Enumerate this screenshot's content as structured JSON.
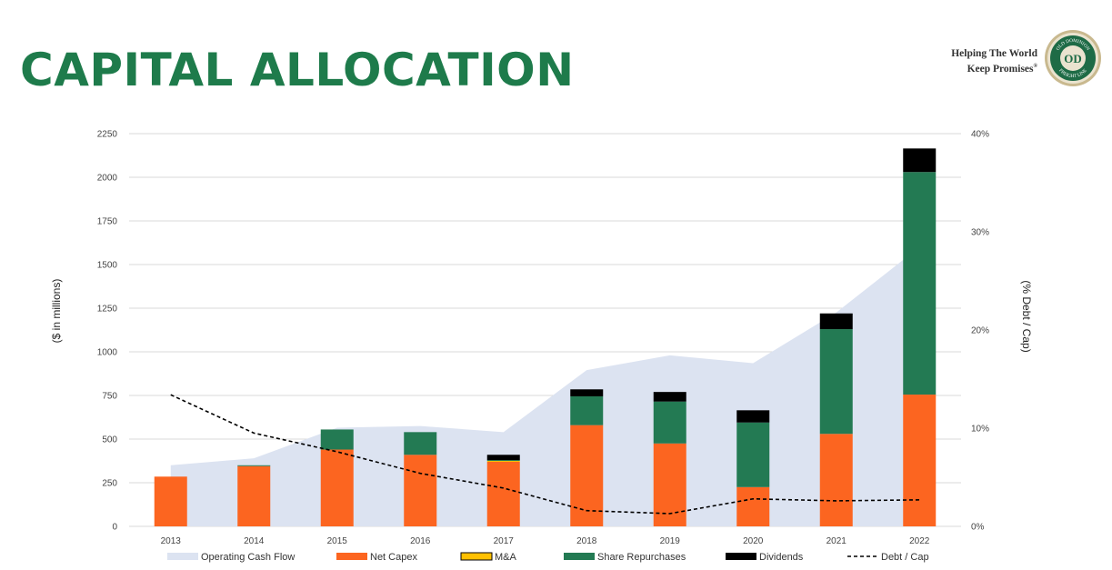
{
  "header": {
    "title": "CAPITAL ALLOCATION",
    "tagline_line1": "Helping The World",
    "tagline_line2": "Keep Promises",
    "trademark": "®",
    "logo_text_top": "OLD DOMINION",
    "logo_text_bottom": "FREIGHT LINE",
    "logo_monogram": "OD"
  },
  "colors": {
    "title": "#1e7b4b",
    "ocf": "#dce3f1",
    "capex": "#fc6520",
    "ma": "#ffc000",
    "repurchases": "#237a53",
    "dividends": "#000000",
    "debt": "#000000",
    "grid": "#d9d9d9"
  },
  "chart_data": {
    "type": "bar",
    "stacked": true,
    "categories": [
      "2013",
      "2014",
      "2015",
      "2016",
      "2017",
      "2018",
      "2019",
      "2020",
      "2021",
      "2022"
    ],
    "ylabel": "($ in millions)",
    "y2label": "(% Debt / Cap)",
    "ylim": [
      0,
      2250
    ],
    "yticks": [
      "0",
      "250",
      "500",
      "750",
      "1000",
      "1250",
      "1500",
      "1750",
      "2000",
      "2250"
    ],
    "y2lim": [
      0,
      0.4
    ],
    "y2ticks": [
      "0%",
      "10%",
      "20%",
      "30%",
      "40%"
    ],
    "grid": true,
    "legend_position": "bottom",
    "series": [
      {
        "name": "Operating Cash Flow",
        "kind": "area",
        "values": [
          350,
          390,
          565,
          575,
          540,
          895,
          980,
          935,
          1225,
          1600
        ]
      },
      {
        "name": "Net Capex",
        "kind": "bar",
        "values": [
          285,
          345,
          440,
          410,
          370,
          580,
          475,
          225,
          530,
          755
        ]
      },
      {
        "name": "M&A",
        "kind": "bar",
        "values": [
          0,
          0,
          0,
          0,
          5,
          0,
          0,
          0,
          0,
          0
        ]
      },
      {
        "name": "Share Repurchases",
        "kind": "bar",
        "values": [
          0,
          5,
          115,
          130,
          5,
          165,
          240,
          370,
          600,
          1275
        ]
      },
      {
        "name": "Dividends",
        "kind": "bar",
        "values": [
          0,
          0,
          0,
          0,
          30,
          40,
          55,
          70,
          90,
          135
        ]
      },
      {
        "name": "Debt / Cap",
        "kind": "line",
        "axis": "y2",
        "values": [
          0.134,
          0.095,
          0.076,
          0.054,
          0.039,
          0.016,
          0.013,
          0.028,
          0.026,
          0.027
        ]
      }
    ]
  }
}
